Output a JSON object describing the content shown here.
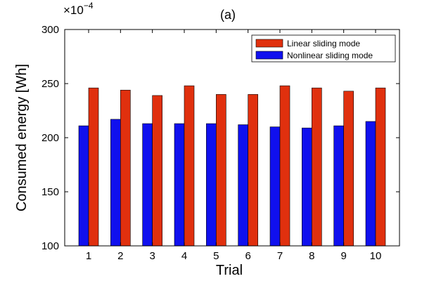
{
  "chart_data": {
    "type": "bar",
    "title": "(a)",
    "xlabel": "Trial",
    "ylabel": "Consumed energy [Wh]",
    "y_multiplier": {
      "base": "×10",
      "exponent": "−4"
    },
    "categories": [
      "1",
      "2",
      "3",
      "4",
      "5",
      "6",
      "7",
      "8",
      "9",
      "10"
    ],
    "ylim": [
      100,
      300
    ],
    "yticks": [
      100,
      150,
      200,
      250,
      300
    ],
    "grid": false,
    "legend_position": "top-right",
    "series": [
      {
        "name": "Nonlinear sliding mode",
        "color": "#1010ee",
        "values": [
          211,
          217,
          213,
          213,
          213,
          212,
          210,
          209,
          211,
          215
        ]
      },
      {
        "name": "Linear sliding mode",
        "color": "#e0300e",
        "values": [
          246,
          244,
          239,
          248,
          240,
          240,
          248,
          246,
          243,
          246
        ]
      }
    ],
    "legend_order": [
      1,
      0
    ]
  }
}
